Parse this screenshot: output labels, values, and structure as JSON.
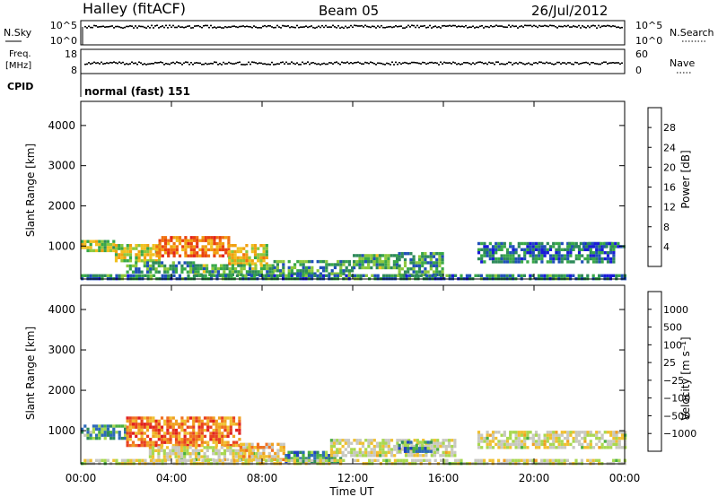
{
  "header": {
    "site": "Halley (fitACF)",
    "beam": "Beam 05",
    "date": "26/Jul/2012"
  },
  "strip_panels": {
    "noise": {
      "left_label": "N.Sky",
      "left_ticks": [
        "10^5",
        "10^0"
      ],
      "right_label": "N.Search",
      "right_ticks": [
        "10^5",
        "10^0"
      ],
      "trace_level": 0.78
    },
    "freq": {
      "left_label_top": "Freq.",
      "left_label_bottom": "[MHz]",
      "left_ticks": [
        "18",
        "8"
      ],
      "right_label": "Nave",
      "right_ticks": [
        "60",
        "0"
      ],
      "trace_level": 0.45
    },
    "cpid": {
      "label": "CPID",
      "text": "normal (fast) 151"
    }
  },
  "x_axis": {
    "ticks": [
      "00:00",
      "04:00",
      "08:00",
      "12:00",
      "16:00",
      "20:00",
      "00:00"
    ],
    "title": "Time UT"
  },
  "chart_data": [
    {
      "type": "heatmap",
      "name": "power",
      "x_range_hours": [
        0,
        24
      ],
      "ylabel": "Slant Range [km]",
      "ylim": [
        180,
        4600
      ],
      "y_ticks": [
        "1000",
        "2000",
        "3000",
        "4000"
      ],
      "colorbar": {
        "label": "Power [dB]",
        "ticks": [
          "4",
          "8",
          "12",
          "16",
          "20",
          "24",
          "28"
        ],
        "colors": [
          "#1a1ad8",
          "#2050b8",
          "#2e8a5a",
          "#38a848",
          "#8cc83c",
          "#f0c020",
          "#f0a010",
          "#f07010",
          "#e84010",
          "#e02020"
        ],
        "range": [
          0,
          30
        ]
      },
      "regions": [
        {
          "t0": 0.0,
          "t1": 1.5,
          "r0": 850,
          "r1": 1150,
          "level": 0.45
        },
        {
          "t0": 1.5,
          "t1": 3.5,
          "r0": 650,
          "r1": 1050,
          "level": 0.5
        },
        {
          "t0": 3.3,
          "t1": 6.5,
          "r0": 750,
          "r1": 1250,
          "level": 0.75
        },
        {
          "t0": 6.5,
          "t1": 8.2,
          "r0": 550,
          "r1": 1050,
          "level": 0.55
        },
        {
          "t0": 2.0,
          "t1": 5.0,
          "r0": 380,
          "r1": 620,
          "level": 0.3
        },
        {
          "t0": 5.0,
          "t1": 8.5,
          "r0": 300,
          "r1": 550,
          "level": 0.35
        },
        {
          "t0": 8.5,
          "t1": 12.0,
          "r0": 300,
          "r1": 650,
          "level": 0.3
        },
        {
          "t0": 12.0,
          "t1": 14.0,
          "r0": 450,
          "r1": 800,
          "level": 0.35
        },
        {
          "t0": 14.0,
          "t1": 16.0,
          "r0": 300,
          "r1": 850,
          "level": 0.3
        },
        {
          "t0": 17.5,
          "t1": 23.5,
          "r0": 600,
          "r1": 1100,
          "level": 0.22
        },
        {
          "t0": 21.5,
          "t1": 24.0,
          "r0": 950,
          "r1": 1100,
          "level": 0.2
        },
        {
          "t0": 0.0,
          "t1": 24.0,
          "r0": 200,
          "r1": 300,
          "level": 0.25
        }
      ]
    },
    {
      "type": "heatmap",
      "name": "velocity",
      "x_range_hours": [
        0,
        24
      ],
      "ylabel": "Slant Range [km]",
      "ylim": [
        180,
        4600
      ],
      "y_ticks": [
        "1000",
        "2000",
        "3000",
        "4000"
      ],
      "colorbar": {
        "label": "Velocity [m s⁻¹]",
        "ticks": [
          "1000",
          "500",
          "100",
          "25",
          "−25",
          "−100",
          "−500",
          "−1000"
        ],
        "colors": [
          "#2040c0",
          "#2e6ab8",
          "#2e8a5a",
          "#4ab040",
          "#a8d850",
          "#c8c8c0",
          "#c8c8c0",
          "#f0c030",
          "#f0a020",
          "#f07020",
          "#e84020",
          "#e02020"
        ],
        "range": [
          -1200,
          1200
        ]
      },
      "regions": [
        {
          "t0": 0.0,
          "t1": 2.0,
          "r0": 800,
          "r1": 1150,
          "level": 0.25
        },
        {
          "t0": 2.0,
          "t1": 7.0,
          "r0": 650,
          "r1": 1350,
          "level": 0.78
        },
        {
          "t0": 3.0,
          "t1": 8.0,
          "r0": 300,
          "r1": 620,
          "level": 0.5
        },
        {
          "t0": 7.0,
          "t1": 9.0,
          "r0": 300,
          "r1": 700,
          "level": 0.65
        },
        {
          "t0": 9.0,
          "t1": 11.5,
          "r0": 250,
          "r1": 500,
          "level": 0.2
        },
        {
          "t0": 11.0,
          "t1": 16.5,
          "r0": 350,
          "r1": 800,
          "level": 0.5
        },
        {
          "t0": 14.0,
          "t1": 15.5,
          "r0": 500,
          "r1": 750,
          "level": 0.22
        },
        {
          "t0": 17.5,
          "t1": 24.0,
          "r0": 600,
          "r1": 1000,
          "level": 0.5
        },
        {
          "t0": 0.0,
          "t1": 24.0,
          "r0": 200,
          "r1": 300,
          "level": 0.5
        }
      ]
    }
  ]
}
